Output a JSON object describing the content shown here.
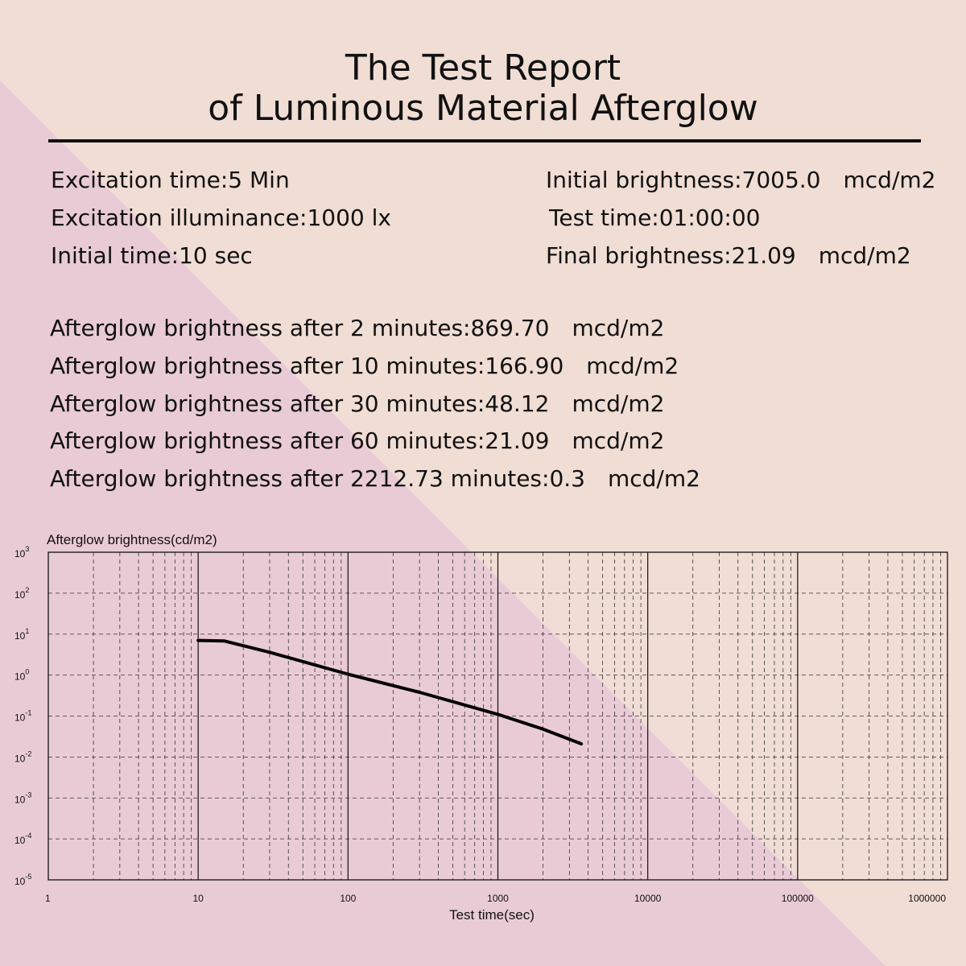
{
  "colors": {
    "background_peach": "#f0ddd4",
    "background_pink": "#e9cbd6",
    "ink": "#111111"
  },
  "report": {
    "title_line1": "The Test Report",
    "title_line2": "of Luminous Material Afterglow",
    "left": [
      "Excitation time:5 Min",
      "Excitation illuminance:1000 lx",
      "Initial time:10 sec"
    ],
    "right": [
      {
        "text": "Initial brightness:7005.0",
        "unit": "mcd/m2"
      },
      {
        "text": "Test time:01:00:00",
        "unit": ""
      },
      {
        "text": "Final brightness:21.09",
        "unit": "mcd/m2"
      }
    ],
    "afterglow": [
      {
        "text": "Afterglow brightness after 2 minutes:869.70",
        "unit": "mcd/m2"
      },
      {
        "text": "Afterglow brightness after 10 minutes:166.90",
        "unit": "mcd/m2"
      },
      {
        "text": "Afterglow brightness after 30 minutes:48.12",
        "unit": "mcd/m2"
      },
      {
        "text": "Afterglow brightness after 60 minutes:21.09",
        "unit": "mcd/m2"
      },
      {
        "text": "Afterglow brightness after 2212.73 minutes:0.3",
        "unit": "mcd/m2"
      }
    ]
  },
  "chart_data": {
    "type": "line",
    "title": "",
    "ylabel": "Afterglow brightness(cd/m2)",
    "xlabel": "Test time(sec)",
    "x_scale": "log",
    "y_scale": "log",
    "xlim": [
      1,
      1000000
    ],
    "ylim": [
      1e-05,
      1000
    ],
    "x_ticks": [
      1,
      10,
      100,
      1000,
      10000,
      100000,
      1000000
    ],
    "x_tick_labels": [
      "1",
      "10",
      "100",
      "1000",
      "10000",
      "100000",
      "1000000"
    ],
    "y_ticks": [
      {
        "base": "10",
        "exp": "3",
        "value": 1000
      },
      {
        "base": "10",
        "exp": "2",
        "value": 100
      },
      {
        "base": "10",
        "exp": "1",
        "value": 10
      },
      {
        "base": "10",
        "exp": "0",
        "value": 1
      },
      {
        "base": "10",
        "exp": "-1",
        "value": 0.1
      },
      {
        "base": "10",
        "exp": "-2",
        "value": 0.01
      },
      {
        "base": "10",
        "exp": "-3",
        "value": 0.001
      },
      {
        "base": "10",
        "exp": "-4",
        "value": 0.0001
      },
      {
        "base": "10",
        "exp": "-5",
        "value": 1e-05
      }
    ],
    "grid": true,
    "series": [
      {
        "name": "Afterglow brightness",
        "x": [
          10,
          15,
          30,
          100,
          300,
          1000,
          2000,
          3600
        ],
        "y": [
          7.0,
          6.8,
          3.6,
          1.05,
          0.38,
          0.11,
          0.048,
          0.021
        ]
      }
    ]
  }
}
